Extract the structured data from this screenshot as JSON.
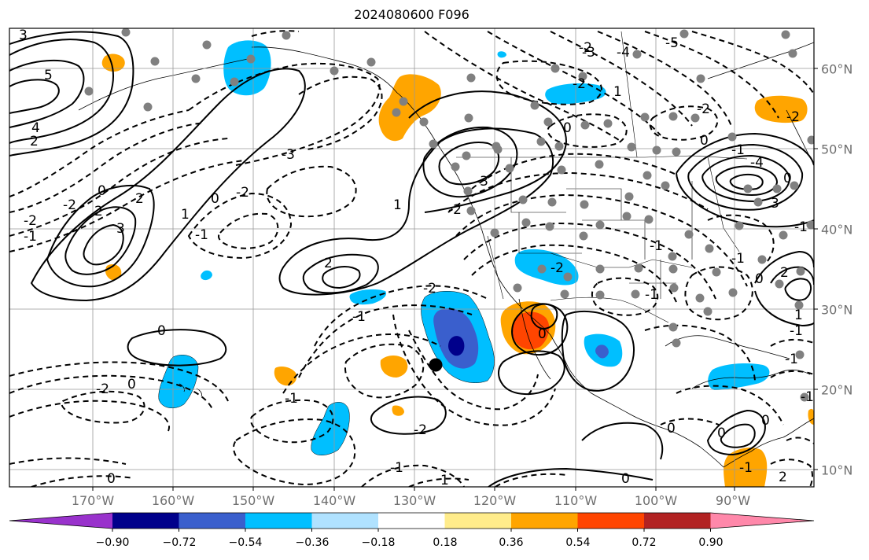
{
  "title": "2024080600 F096",
  "lon_labels": [
    "170°W",
    "160°W",
    "150°W",
    "140°W",
    "130°W",
    "120°W",
    "110°W",
    "100°W",
    "90°W"
  ],
  "lat_labels": [
    "60°N",
    "50°N",
    "40°N",
    "30°N",
    "20°N",
    "10°N"
  ],
  "colorbar": {
    "ticks": [
      "−0.90",
      "−0.72",
      "−0.54",
      "−0.36",
      "−0.18",
      "0.18",
      "0.36",
      "0.54",
      "0.72",
      "0.90"
    ],
    "colors": [
      "#9932cc",
      "#00008b",
      "#3a5fcd",
      "#00bfff",
      "#b0e2ff",
      "#ffffff",
      "#ffec8b",
      "#ffa500",
      "#ff4500",
      "#b22222",
      "#ff88aa"
    ]
  },
  "contour_labels": [
    "3",
    "5",
    "4",
    "2",
    "3",
    "2",
    "0",
    "2",
    "1",
    "-2",
    "-1",
    "-2",
    "0",
    "-1",
    "-2",
    "-3",
    "1",
    "2",
    "-1",
    "-2",
    "-2",
    "-3",
    "0",
    "-2",
    "1",
    "-2",
    "-3",
    "-4",
    "-5",
    "-2",
    "0",
    "-1",
    "-2",
    "3",
    "-4",
    "-2",
    "-1",
    "1",
    "2",
    "0",
    "-1",
    "0",
    "-1",
    "0",
    "0",
    "-2",
    "-1",
    "-2",
    "-1",
    "1",
    "0",
    "0",
    "-1",
    "2",
    "0",
    "-1",
    "0",
    "-1",
    "0",
    "-1",
    "-1",
    "0"
  ],
  "marker": "location-dot"
}
